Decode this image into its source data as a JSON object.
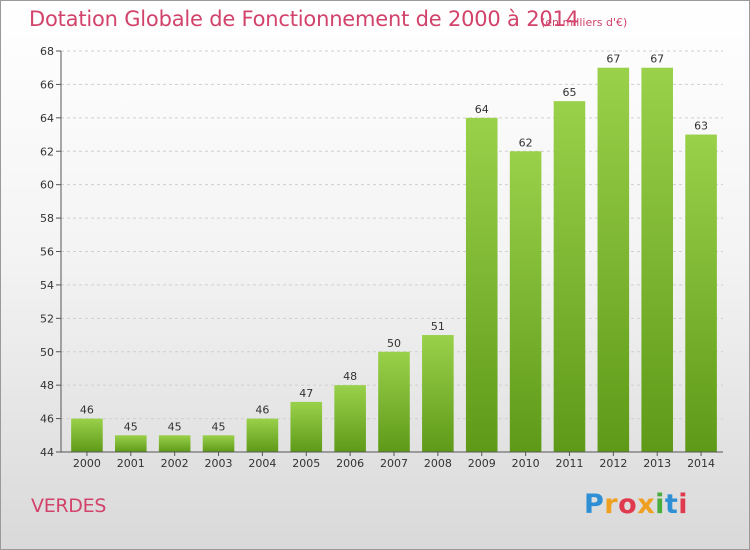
{
  "chart_data": {
    "type": "bar",
    "title": "Dotation Globale de Fonctionnement de 2000 à 2014",
    "subtitle": "(en milliers d'€)",
    "categories": [
      "2000",
      "2001",
      "2002",
      "2003",
      "2004",
      "2005",
      "2006",
      "2007",
      "2008",
      "2009",
      "2010",
      "2011",
      "2012",
      "2013",
      "2014"
    ],
    "values": [
      46,
      45,
      45,
      45,
      46,
      47,
      48,
      50,
      51,
      64,
      62,
      65,
      67,
      67,
      63
    ],
    "value_labels": [
      "46",
      "45",
      "45",
      "45",
      "46",
      "47",
      "48",
      "50",
      "51",
      "64",
      "62",
      "65",
      "67",
      "67",
      "63"
    ],
    "ylim": [
      44,
      68
    ],
    "yticks": [
      "44",
      "46",
      "48",
      "50",
      "52",
      "54",
      "56",
      "58",
      "60",
      "62",
      "64",
      "66",
      "68"
    ],
    "xlabel": "",
    "ylabel": "",
    "grid": true,
    "bar_color_top": "#9ad14b",
    "bar_color_bottom": "#5e9a18"
  },
  "commune": "VERDES",
  "logo": {
    "letters": [
      "P",
      "r",
      "o",
      "x",
      "i",
      "t",
      "i"
    ],
    "colors": [
      "#2f8fd4",
      "#f0a020",
      "#e03a4e",
      "#f0a020",
      "#49ad3b",
      "#2f8fd4",
      "#e03a4e"
    ]
  }
}
